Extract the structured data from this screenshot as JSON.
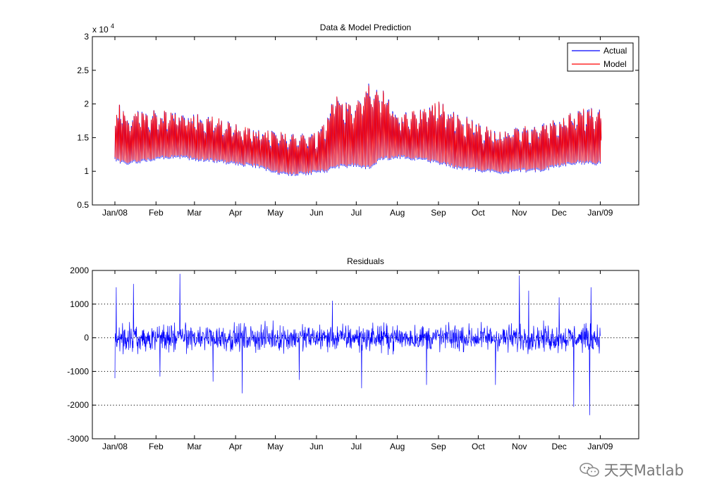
{
  "chart_data": [
    {
      "type": "line",
      "title": "Data & Model Prediction",
      "xlabel": "",
      "ylabel": "",
      "y_exponent_label": "x 10",
      "y_exponent_power": "4",
      "ylim": [
        5000,
        30000
      ],
      "yticks": [
        5000,
        10000,
        15000,
        20000,
        25000,
        30000
      ],
      "ytick_labels": [
        "0.5",
        "1",
        "1.5",
        "2",
        "2.5",
        "3"
      ],
      "xlim": [
        "2007-12-15",
        "2009-01-30"
      ],
      "xticks": [
        "2008-01-01",
        "2008-02-01",
        "2008-03-01",
        "2008-04-01",
        "2008-05-01",
        "2008-06-01",
        "2008-07-01",
        "2008-08-01",
        "2008-09-01",
        "2008-10-01",
        "2008-11-01",
        "2008-12-01",
        "2009-01-01"
      ],
      "xtick_labels": [
        "Jan/08",
        "Feb",
        "Mar",
        "Apr",
        "May",
        "Jun",
        "Jul",
        "Aug",
        "Sep",
        "Oct",
        "Nov",
        "Dec",
        "Jan/09"
      ],
      "grid": false,
      "legend": "top-right",
      "series": [
        {
          "name": "Actual",
          "color": "#0000ff",
          "style": "hourly load, daily cycle"
        },
        {
          "name": "Model",
          "color": "#ff0000",
          "style": "hourly load, daily cycle"
        }
      ],
      "envelope": {
        "x": [
          "2008-01-01",
          "2008-01-05",
          "2008-01-10",
          "2008-01-20",
          "2008-02-01",
          "2008-02-15",
          "2008-03-01",
          "2008-03-15",
          "2008-04-01",
          "2008-04-15",
          "2008-05-01",
          "2008-05-15",
          "2008-06-01",
          "2008-06-10",
          "2008-06-15",
          "2008-06-25",
          "2008-07-01",
          "2008-07-10",
          "2008-07-20",
          "2008-08-01",
          "2008-08-15",
          "2008-09-01",
          "2008-09-15",
          "2008-10-01",
          "2008-10-15",
          "2008-11-01",
          "2008-11-15",
          "2008-12-01",
          "2008-12-15",
          "2009-01-01"
        ],
        "low": [
          11500,
          11000,
          10800,
          11200,
          11500,
          11800,
          11500,
          11200,
          10800,
          10500,
          9500,
          9200,
          9500,
          9800,
          10300,
          10500,
          10500,
          10200,
          11500,
          11800,
          11500,
          11000,
          10200,
          9800,
          9500,
          9800,
          9800,
          10500,
          11000,
          10800
        ],
        "high": [
          18000,
          21500,
          19000,
          19500,
          19500,
          19200,
          19000,
          18500,
          17500,
          16800,
          16500,
          16000,
          16000,
          19500,
          23000,
          20500,
          21000,
          24500,
          23500,
          19000,
          19500,
          21000,
          19500,
          17500,
          16500,
          17000,
          17500,
          18500,
          19500,
          20000
        ]
      }
    },
    {
      "type": "line",
      "title": "Residuals",
      "xlabel": "",
      "ylabel": "",
      "ylim": [
        -3000,
        2000
      ],
      "yticks": [
        -3000,
        -2000,
        -1000,
        0,
        1000,
        2000
      ],
      "ytick_labels": [
        "-3000",
        "-2000",
        "-1000",
        "0",
        "1000",
        "2000"
      ],
      "xlim": [
        "2007-12-15",
        "2009-01-30"
      ],
      "xticks": [
        "2008-01-01",
        "2008-02-01",
        "2008-03-01",
        "2008-04-01",
        "2008-05-01",
        "2008-06-01",
        "2008-07-01",
        "2008-08-01",
        "2008-09-01",
        "2008-10-01",
        "2008-11-01",
        "2008-12-01",
        "2009-01-01"
      ],
      "xtick_labels": [
        "Jan/08",
        "Feb",
        "Mar",
        "Apr",
        "May",
        "Jun",
        "Jul",
        "Aug",
        "Sep",
        "Oct",
        "Nov",
        "Dec",
        "Jan/09"
      ],
      "grid": "y-dotted",
      "series": [
        {
          "color": "#0000ff"
        }
      ],
      "spikes": [
        {
          "x": "2008-01-01",
          "y": -1200
        },
        {
          "x": "2008-01-02",
          "y": 1500
        },
        {
          "x": "2008-01-15",
          "y": 1600
        },
        {
          "x": "2008-02-04",
          "y": -1150
        },
        {
          "x": "2008-02-19",
          "y": 1900
        },
        {
          "x": "2008-03-15",
          "y": -1300
        },
        {
          "x": "2008-04-06",
          "y": -1650
        },
        {
          "x": "2008-05-19",
          "y": -1250
        },
        {
          "x": "2008-06-13",
          "y": 1100
        },
        {
          "x": "2008-07-05",
          "y": -1500
        },
        {
          "x": "2008-08-23",
          "y": -1400
        },
        {
          "x": "2008-10-14",
          "y": -1400
        },
        {
          "x": "2008-11-01",
          "y": 1850
        },
        {
          "x": "2008-11-08",
          "y": 1400
        },
        {
          "x": "2008-12-01",
          "y": 1200
        },
        {
          "x": "2008-12-12",
          "y": -2050
        },
        {
          "x": "2008-12-24",
          "y": -2300
        },
        {
          "x": "2008-12-25",
          "y": 1500
        }
      ]
    }
  ],
  "watermark": {
    "text": "天天Matlab"
  }
}
